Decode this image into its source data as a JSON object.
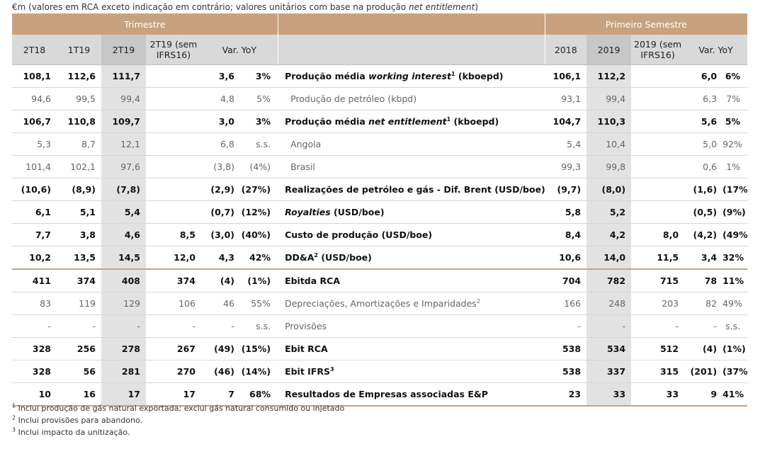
{
  "caption": {
    "prefix": "€m (valores em RCA exceto indicação em contrário; valores unitários com base na produção ",
    "italic": "net entitlement",
    "suffix": ")"
  },
  "headers": {
    "trimestre": "Trimestre",
    "semestre": "Primeiro Semestre",
    "q_cols": [
      "2T18",
      "1T19",
      "2T19",
      "2T19 (sem\nIFRS16)",
      "Var. YoY"
    ],
    "s_cols": [
      "2018",
      "2019",
      "2019 (sem\nIFRS16)",
      "Var. YoY"
    ]
  },
  "rows": [
    {
      "label_pre": "Produção média ",
      "label_it": "working interest",
      "label_sup": "1",
      "label_post": " (kboepd)",
      "q": [
        "108,1",
        "112,6",
        "111,7",
        "",
        "3,6",
        "3%"
      ],
      "s": [
        "106,1",
        "112,2",
        "",
        "6,0",
        "6%"
      ]
    },
    {
      "label_pre": "Produção de petróleo (kbpd)",
      "label_it": "",
      "label_sup": "",
      "label_post": "",
      "q": [
        "94,6",
        "99,5",
        "99,4",
        "",
        "4,8",
        "5%"
      ],
      "s": [
        "93,1",
        "99,4",
        "",
        "6,3",
        "7%"
      ]
    },
    {
      "label_pre": "Produção média ",
      "label_it": "net entitlement",
      "label_sup": "1",
      "label_post": " (kboepd)",
      "q": [
        "106,7",
        "110,8",
        "109,7",
        "",
        "3,0",
        "3%"
      ],
      "s": [
        "104,7",
        "110,3",
        "",
        "5,6",
        "5%"
      ]
    },
    {
      "label_pre": "Angola",
      "label_it": "",
      "label_sup": "",
      "label_post": "",
      "q": [
        "5,3",
        "8,7",
        "12,1",
        "",
        "6,8",
        "s.s."
      ],
      "s": [
        "5,4",
        "10,4",
        "",
        "5,0",
        "92%"
      ]
    },
    {
      "label_pre": "Brasil",
      "label_it": "",
      "label_sup": "",
      "label_post": "",
      "q": [
        "101,4",
        "102,1",
        "97,6",
        "",
        "(3,8)",
        "(4%)"
      ],
      "s": [
        "99,3",
        "99,8",
        "",
        "0,6",
        "1%"
      ]
    },
    {
      "label_pre": "Realizações de petróleo e gás - Dif. Brent (USD/boe)",
      "label_it": "",
      "label_sup": "",
      "label_post": "",
      "q": [
        "(10,6)",
        "(8,9)",
        "(7,8)",
        "",
        "(2,9)",
        "(27%)"
      ],
      "s": [
        "(9,7)",
        "(8,0)",
        "",
        "(1,6)",
        "(17%)"
      ]
    },
    {
      "label_pre": "",
      "label_it": "Royalties",
      "label_sup": "",
      "label_post": " (USD/boe)",
      "q": [
        "6,1",
        "5,1",
        "5,4",
        "",
        "(0,7)",
        "(12%)"
      ],
      "s": [
        "5,8",
        "5,2",
        "",
        "(0,5)",
        "(9%)"
      ]
    },
    {
      "label_pre": "Custo de produção (USD/boe)",
      "label_it": "",
      "label_sup": "",
      "label_post": "",
      "q": [
        "7,7",
        "3,8",
        "4,6",
        "8,5",
        "(3,0)",
        "(40%)"
      ],
      "s": [
        "8,4",
        "4,2",
        "8,0",
        "(4,2)",
        "(49%)"
      ]
    },
    {
      "label_pre": "DD&A",
      "label_it": "",
      "label_sup": "2",
      "label_post": " (USD/boe)",
      "q": [
        "10,2",
        "13,5",
        "14,5",
        "12,0",
        "4,3",
        "42%"
      ],
      "s": [
        "10,6",
        "14,0",
        "11,5",
        "3,4",
        "32%"
      ]
    },
    {
      "label_pre": "Ebitda RCA",
      "label_it": "",
      "label_sup": "",
      "label_post": "",
      "q": [
        "411",
        "374",
        "408",
        "374",
        "(4)",
        "(1%)"
      ],
      "s": [
        "704",
        "782",
        "715",
        "78",
        "11%"
      ]
    },
    {
      "label_pre": "Depreciações, Amortizações e Imparidades",
      "label_it": "",
      "label_sup": "2",
      "label_post": "",
      "q": [
        "83",
        "119",
        "129",
        "106",
        "46",
        "55%"
      ],
      "s": [
        "166",
        "248",
        "203",
        "82",
        "49%"
      ]
    },
    {
      "label_pre": "Provisões",
      "label_it": "",
      "label_sup": "",
      "label_post": "",
      "q": [
        "-",
        "-",
        "-",
        "-",
        "-",
        "s.s."
      ],
      "s": [
        "-",
        "-",
        "-",
        "-",
        "s.s."
      ]
    },
    {
      "label_pre": "Ebit RCA",
      "label_it": "",
      "label_sup": "",
      "label_post": "",
      "q": [
        "328",
        "256",
        "278",
        "267",
        "(49)",
        "(15%)"
      ],
      "s": [
        "538",
        "534",
        "512",
        "(4)",
        "(1%)"
      ]
    },
    {
      "label_pre": "Ebit IFRS",
      "label_it": "",
      "label_sup": "3",
      "label_post": "",
      "q": [
        "328",
        "56",
        "281",
        "270",
        "(46)",
        "(14%)"
      ],
      "s": [
        "538",
        "337",
        "315",
        "(201)",
        "(37%)"
      ]
    },
    {
      "label_pre": "Resultados de Empresas associadas E&P",
      "label_it": "",
      "label_sup": "",
      "label_post": "",
      "q": [
        "10",
        "16",
        "17",
        "17",
        "7",
        "68%"
      ],
      "s": [
        "23",
        "33",
        "33",
        "9",
        "41%"
      ]
    }
  ],
  "notes": [
    {
      "sup": "1",
      "text": " Inclui produção de gás natural exportada; exclui gás natural consumido ou injetado"
    },
    {
      "sup": "2",
      "text": " Inclui provisões para abandono."
    },
    {
      "sup": "3",
      "text": " Inclui impacto da unitização."
    }
  ]
}
